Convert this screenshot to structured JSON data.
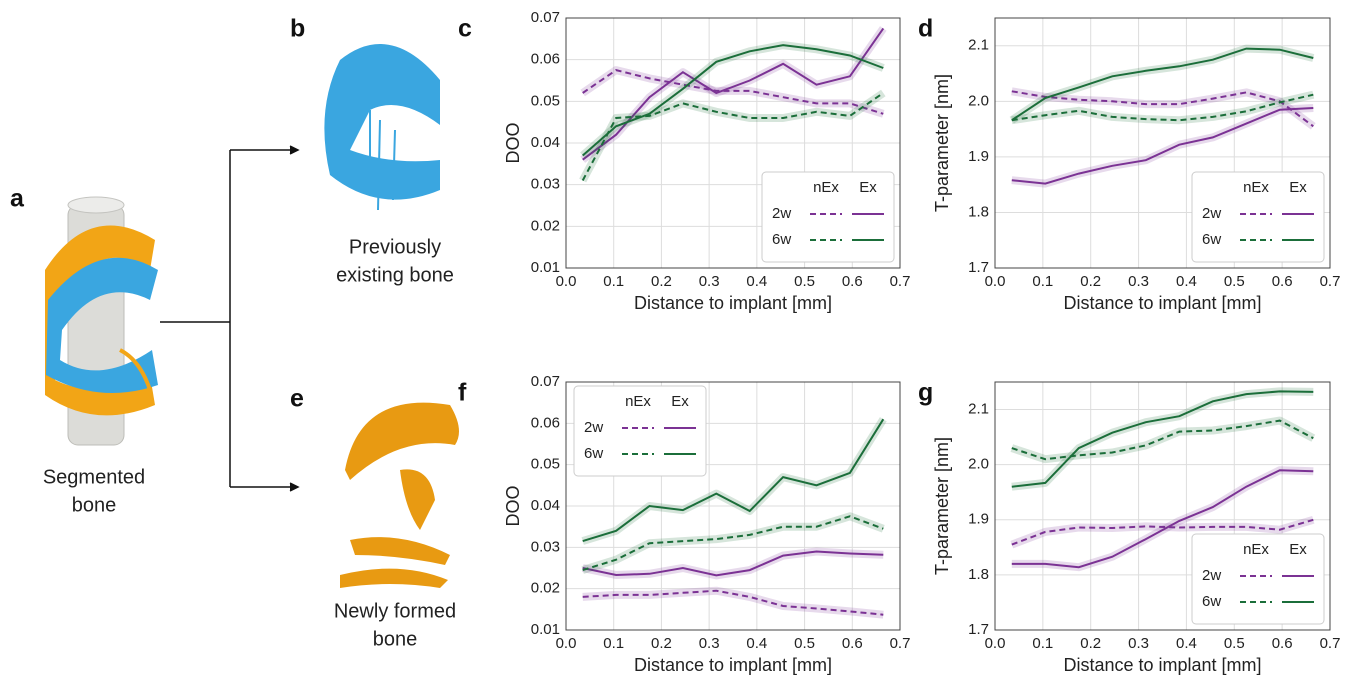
{
  "panels": {
    "a": {
      "label": "a",
      "caption": [
        "Segmented",
        "bone"
      ]
    },
    "b": {
      "label": "b",
      "caption": [
        "Previously",
        "existing bone"
      ]
    },
    "e": {
      "label": "e",
      "caption": [
        "Newly formed",
        "bone"
      ]
    }
  },
  "chart_data": [
    {
      "type": "line",
      "panel_label": "c",
      "xlabel": "Distance to implant [mm]",
      "ylabel": "DOO",
      "x": [
        0.035,
        0.105,
        0.175,
        0.245,
        0.315,
        0.385,
        0.455,
        0.525,
        0.595,
        0.665
      ],
      "xlim": [
        0,
        0.7
      ],
      "xticks": [
        {
          "value": 0,
          "label": "0.0"
        },
        0.1,
        0.2,
        0.3,
        0.4,
        0.5,
        0.6,
        0.7
      ],
      "ylim": [
        0.01,
        0.07
      ],
      "yticks": [
        0.01,
        0.02,
        0.03,
        0.04,
        0.05,
        0.06,
        0.07
      ],
      "grid": true,
      "legend": {
        "position": "lower right",
        "columns": [
          "nEx",
          "Ex"
        ],
        "rows": [
          {
            "label": "2w",
            "color": "#7b3294"
          },
          {
            "label": "6w",
            "color": "#1b6e3a"
          }
        ]
      },
      "series": [
        {
          "color": "#7b3294",
          "dashed": true,
          "values": [
            0.052,
            0.0575,
            0.0555,
            0.054,
            0.0525,
            0.0525,
            0.051,
            0.0495,
            0.0495,
            0.047
          ]
        },
        {
          "color": "#7b3294",
          "dashed": false,
          "values": [
            0.036,
            0.042,
            0.051,
            0.057,
            0.052,
            0.055,
            0.059,
            0.054,
            0.056,
            0.0675
          ]
        },
        {
          "color": "#1b6e3a",
          "dashed": true,
          "values": [
            0.031,
            0.046,
            0.0465,
            0.0495,
            0.0475,
            0.046,
            0.046,
            0.0475,
            0.0465,
            0.052
          ]
        },
        {
          "color": "#1b6e3a",
          "dashed": false,
          "values": [
            0.037,
            0.044,
            0.047,
            0.053,
            0.0595,
            0.062,
            0.0635,
            0.0625,
            0.061,
            0.058
          ]
        }
      ]
    },
    {
      "type": "line",
      "panel_label": "d",
      "xlabel": "Distance to implant [mm]",
      "ylabel": "T-parameter [nm]",
      "x": [
        0.035,
        0.105,
        0.175,
        0.245,
        0.315,
        0.385,
        0.455,
        0.525,
        0.595,
        0.665
      ],
      "xlim": [
        0,
        0.7
      ],
      "xticks": [
        {
          "value": 0,
          "label": "0.0"
        },
        0.1,
        0.2,
        0.3,
        0.4,
        0.5,
        0.6,
        0.7
      ],
      "ylim": [
        1.7,
        2.15
      ],
      "yticks": [
        1.7,
        1.8,
        1.9,
        {
          "value": 2,
          "label": "2.0"
        },
        2.1
      ],
      "grid": true,
      "legend": {
        "position": "lower right",
        "columns": [
          "nEx",
          "Ex"
        ],
        "rows": [
          {
            "label": "2w",
            "color": "#7b3294"
          },
          {
            "label": "6w",
            "color": "#1b6e3a"
          }
        ]
      },
      "series": [
        {
          "color": "#7b3294",
          "dashed": true,
          "values": [
            2.018,
            2.008,
            2.003,
            2.0,
            1.995,
            1.995,
            2.005,
            2.016,
            2.0,
            1.955
          ]
        },
        {
          "color": "#7b3294",
          "dashed": false,
          "values": [
            1.858,
            1.852,
            1.87,
            1.884,
            1.894,
            1.922,
            1.935,
            1.96,
            1.985,
            1.988
          ]
        },
        {
          "color": "#1b6e3a",
          "dashed": true,
          "values": [
            1.966,
            1.975,
            1.983,
            1.972,
            1.968,
            1.966,
            1.972,
            1.982,
            1.998,
            2.012
          ]
        },
        {
          "color": "#1b6e3a",
          "dashed": false,
          "values": [
            1.966,
            2.006,
            2.025,
            2.045,
            2.055,
            2.063,
            2.075,
            2.095,
            2.093,
            2.078
          ]
        }
      ]
    },
    {
      "type": "line",
      "panel_label": "f",
      "xlabel": "Distance to implant [mm]",
      "ylabel": "DOO",
      "x": [
        0.035,
        0.105,
        0.175,
        0.245,
        0.315,
        0.385,
        0.455,
        0.525,
        0.595,
        0.665
      ],
      "xlim": [
        0,
        0.7
      ],
      "xticks": [
        {
          "value": 0,
          "label": "0.0"
        },
        0.1,
        0.2,
        0.3,
        0.4,
        0.5,
        0.6,
        0.7
      ],
      "ylim": [
        0.01,
        0.07
      ],
      "yticks": [
        0.01,
        0.02,
        0.03,
        0.04,
        0.05,
        0.06,
        0.07
      ],
      "grid": true,
      "legend": {
        "position": "upper left",
        "columns": [
          "nEx",
          "Ex"
        ],
        "rows": [
          {
            "label": "2w",
            "color": "#7b3294"
          },
          {
            "label": "6w",
            "color": "#1b6e3a"
          }
        ]
      },
      "series": [
        {
          "color": "#7b3294",
          "dashed": true,
          "values": [
            0.018,
            0.0185,
            0.0185,
            0.019,
            0.0195,
            0.018,
            0.0158,
            0.0152,
            0.0145,
            0.0137
          ]
        },
        {
          "color": "#7b3294",
          "dashed": false,
          "values": [
            0.025,
            0.0233,
            0.0236,
            0.025,
            0.0232,
            0.0245,
            0.028,
            0.029,
            0.0285,
            0.0282
          ]
        },
        {
          "color": "#1b6e3a",
          "dashed": true,
          "values": [
            0.0245,
            0.027,
            0.031,
            0.0315,
            0.032,
            0.033,
            0.035,
            0.035,
            0.0375,
            0.0345
          ]
        },
        {
          "color": "#1b6e3a",
          "dashed": false,
          "values": [
            0.0315,
            0.034,
            0.04,
            0.039,
            0.043,
            0.0388,
            0.047,
            0.045,
            0.048,
            0.061
          ]
        }
      ]
    },
    {
      "type": "line",
      "panel_label": "g",
      "xlabel": "Distance to implant [mm]",
      "ylabel": "T-parameter [nm]",
      "x": [
        0.035,
        0.105,
        0.175,
        0.245,
        0.315,
        0.385,
        0.455,
        0.525,
        0.595,
        0.665
      ],
      "xlim": [
        0,
        0.7
      ],
      "xticks": [
        {
          "value": 0,
          "label": "0.0"
        },
        0.1,
        0.2,
        0.3,
        0.4,
        0.5,
        0.6,
        0.7
      ],
      "ylim": [
        1.7,
        2.15
      ],
      "yticks": [
        1.7,
        1.8,
        1.9,
        {
          "value": 2,
          "label": "2.0"
        },
        2.1
      ],
      "grid": true,
      "legend": {
        "position": "lower right",
        "columns": [
          "nEx",
          "Ex"
        ],
        "rows": [
          {
            "label": "2w",
            "color": "#7b3294"
          },
          {
            "label": "6w",
            "color": "#1b6e3a"
          }
        ]
      },
      "series": [
        {
          "color": "#7b3294",
          "dashed": true,
          "values": [
            1.855,
            1.878,
            1.886,
            1.885,
            1.888,
            1.886,
            1.887,
            1.887,
            1.882,
            1.9
          ]
        },
        {
          "color": "#7b3294",
          "dashed": false,
          "values": [
            1.82,
            1.82,
            1.814,
            1.833,
            1.865,
            1.898,
            1.923,
            1.96,
            1.99,
            1.988
          ]
        },
        {
          "color": "#1b6e3a",
          "dashed": true,
          "values": [
            2.03,
            2.01,
            2.017,
            2.022,
            2.035,
            2.06,
            2.062,
            2.07,
            2.08,
            2.048
          ]
        },
        {
          "color": "#1b6e3a",
          "dashed": false,
          "values": [
            1.96,
            1.967,
            2.03,
            2.058,
            2.077,
            2.088,
            2.115,
            2.128,
            2.133,
            2.132
          ]
        }
      ]
    }
  ]
}
